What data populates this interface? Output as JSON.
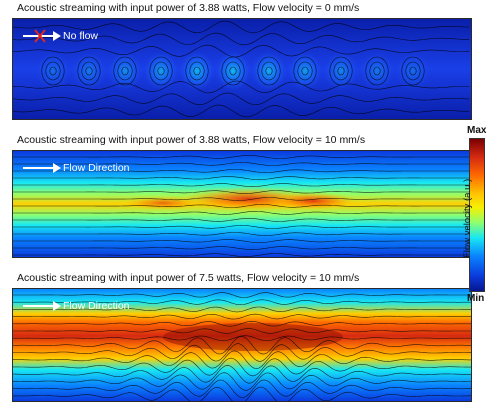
{
  "panels": [
    {
      "title": "Acoustic streaming with input power of 3.88 watts, Flow velocity = 0 mm/s",
      "label": "No flow"
    },
    {
      "title": "Acoustic streaming with input power of 3.88 watts, Flow velocity = 10 mm/s",
      "label": "Flow Direction"
    },
    {
      "title": "Acoustic streaming with input power of 7.5 watts, Flow velocity = 10 mm/s",
      "label": "Flow Direction"
    }
  ],
  "colorbar": {
    "max": "Max",
    "min": "Min",
    "label": "Flow velocity (a.u.)"
  },
  "colors": {
    "cross": "#e0261c",
    "arrow": "#ffffff"
  }
}
